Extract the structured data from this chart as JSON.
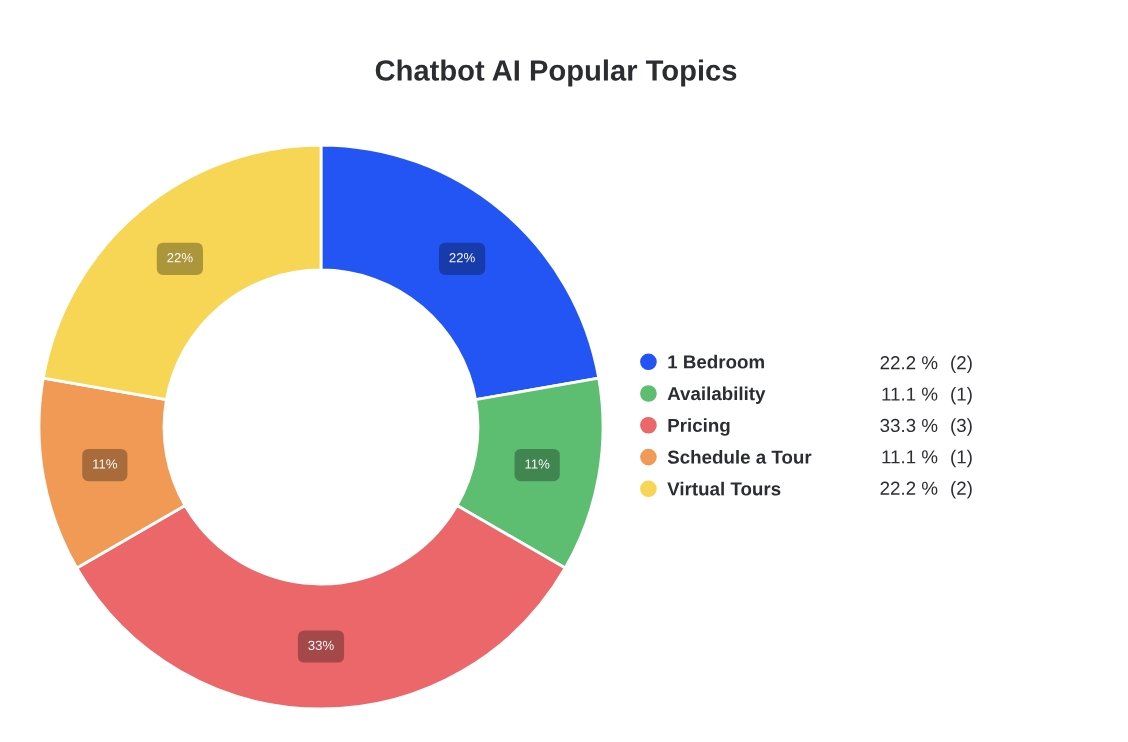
{
  "chart_data": {
    "type": "donut",
    "title": "Chatbot AI Popular Topics",
    "categories": [
      "1 Bedroom",
      "Availability",
      "Pricing",
      "Schedule a Tour",
      "Virtual Tours"
    ],
    "values": [
      22.2,
      11.1,
      33.3,
      11.1,
      22.2
    ],
    "colors": [
      "#2355f5",
      "#5dbe72",
      "#eb6769",
      "#f09a56",
      "#f6d654"
    ],
    "value_labels": [
      "22%",
      "11%",
      "33%",
      "11%",
      "22%"
    ],
    "annotations": [
      "22.2 %",
      "(2)",
      "11.1 %",
      "(1)",
      "33.3 %",
      "(3)",
      "11.1 %",
      "(1)",
      "22.2 %",
      "(2)"
    ],
    "legend": "right"
  }
}
